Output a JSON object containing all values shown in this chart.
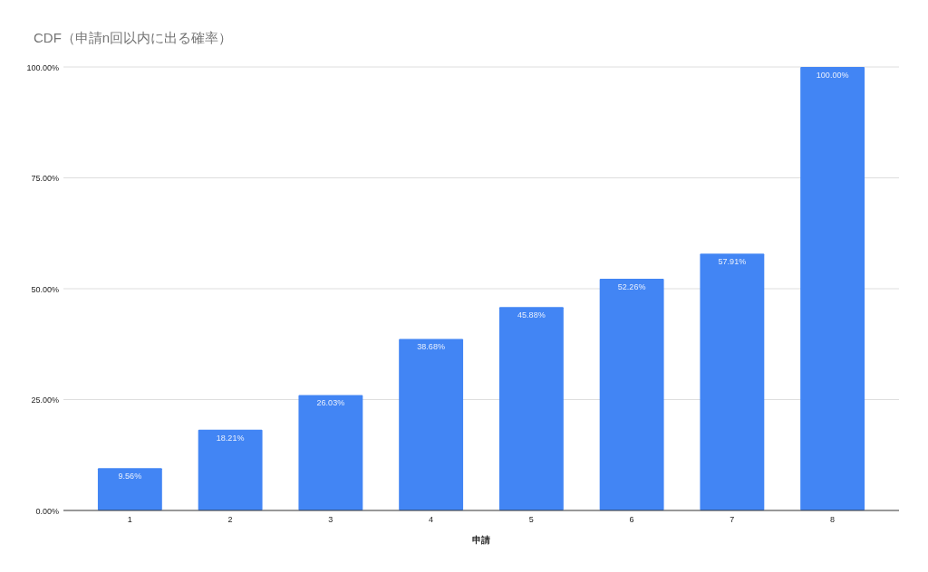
{
  "chart_data": {
    "type": "bar",
    "title": "CDF（申請n回以内に出る確率）",
    "xlabel": "申請",
    "categories": [
      "1",
      "2",
      "3",
      "4",
      "5",
      "6",
      "7",
      "8"
    ],
    "values": [
      9.56,
      18.21,
      26.03,
      38.68,
      45.88,
      52.26,
      57.91,
      100
    ],
    "value_labels": [
      "9.56%",
      "18.21%",
      "26.03%",
      "38.68%",
      "45.88%",
      "52.26%",
      "57.91%",
      "100.00%"
    ],
    "color": "#4285f4",
    "ylim": [
      0,
      100
    ],
    "yticks": [
      {
        "value": 0,
        "label": "0.00%"
      },
      {
        "value": 25,
        "label": "25.00%"
      },
      {
        "value": 50,
        "label": "50.00%"
      },
      {
        "value": 75,
        "label": "75.00%"
      },
      {
        "value": 100,
        "label": "100.00%"
      }
    ],
    "grid": "y"
  }
}
